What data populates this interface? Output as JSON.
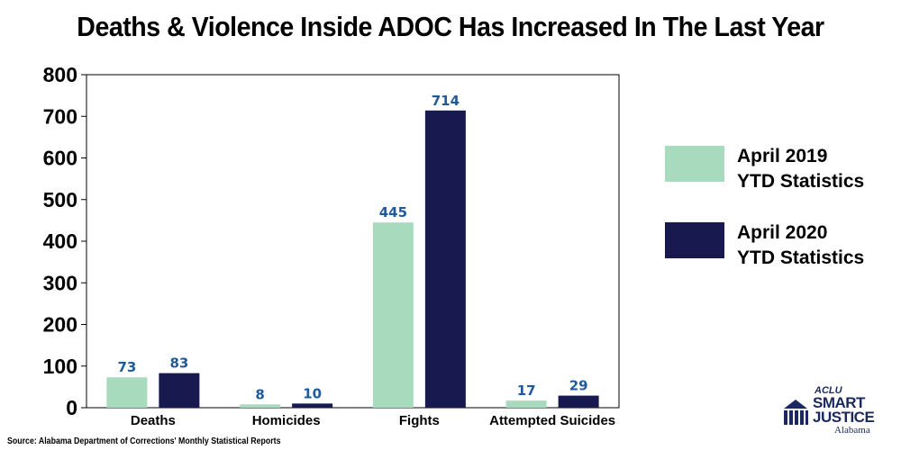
{
  "chart_data": {
    "type": "bar",
    "title": "Deaths & Violence Inside ADOC Has Increased In The Last Year",
    "categories": [
      "Deaths",
      "Homicides",
      "Fights",
      "Attempted Suicides"
    ],
    "series": [
      {
        "name": "April 2019 YTD Statistics",
        "legend_line1": "April 2019",
        "legend_line2": "YTD Statistics",
        "color": "#a8dbbd",
        "values": [
          73,
          8,
          445,
          17
        ]
      },
      {
        "name": "April 2020 YTD Statistics",
        "legend_line1": "April 2020",
        "legend_line2": "YTD Statistics",
        "color": "#181a4f",
        "values": [
          83,
          10,
          714,
          29
        ]
      }
    ],
    "yticks": [
      0,
      100,
      200,
      300,
      400,
      500,
      600,
      700,
      800
    ],
    "ylim": [
      0,
      800
    ],
    "xlabel": "",
    "ylabel": "",
    "grid": false,
    "legend_position": "right",
    "label_color": "#1f5a9c"
  },
  "source": "Source: Alabama Department of Corrections' Monthly Statistical Reports",
  "logo": {
    "aclu": "ACLU",
    "line1": "SMART",
    "line2": "JUSTICE",
    "state": "Alabama",
    "color": "#1b2a5e"
  }
}
